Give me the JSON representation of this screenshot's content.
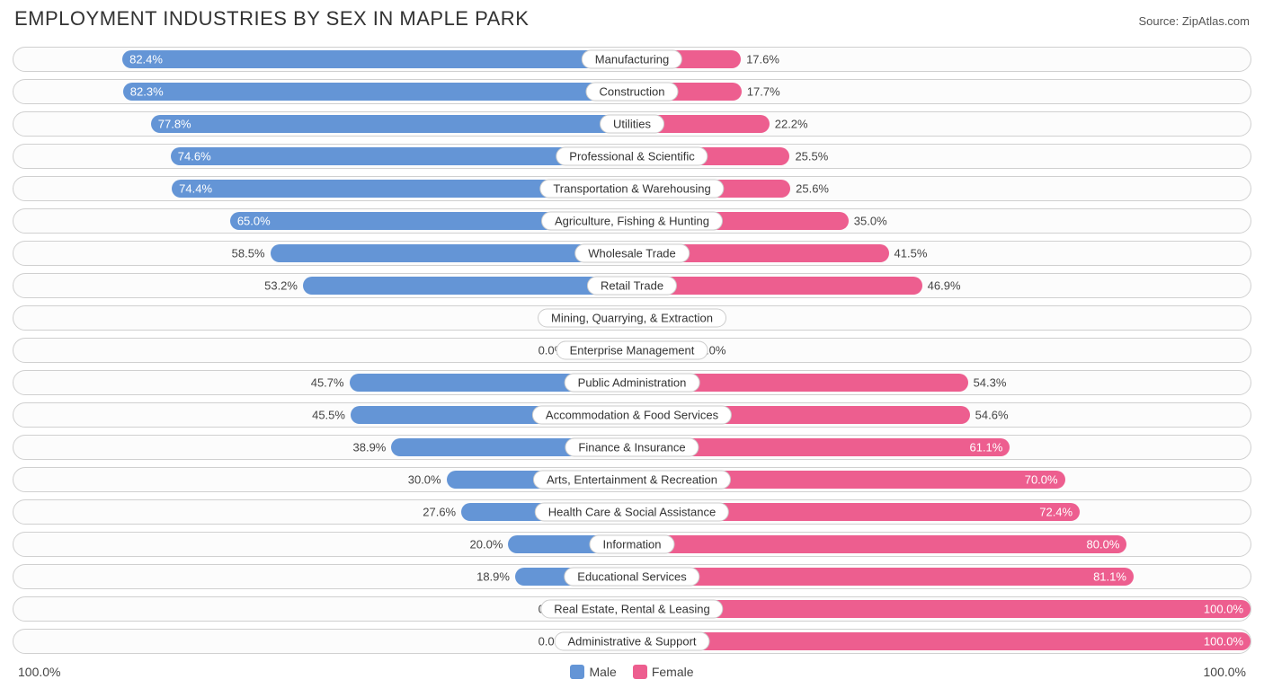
{
  "header": {
    "title": "EMPLOYMENT INDUSTRIES BY SEX IN MAPLE PARK",
    "source_prefix": "Source: ",
    "source_name": "ZipAtlas.com"
  },
  "chart": {
    "type": "diverging-bar",
    "axis_center": 0,
    "half_width_pct": 50,
    "min_visual_pct": 10,
    "inside_label_threshold_pct": 60,
    "colors": {
      "male": "#6495d6",
      "female": "#ed5e8f",
      "male_light": "#8ab2e4",
      "female_light": "#f28bb0",
      "track_border": "#d0d0d0",
      "track_bg": "#fcfcfc",
      "text": "#333333",
      "value_inside": "#ffffff",
      "value_outside": "#444444"
    },
    "rows": [
      {
        "label": "Manufacturing",
        "male": 82.4,
        "female": 17.6,
        "no_data": false
      },
      {
        "label": "Construction",
        "male": 82.3,
        "female": 17.7,
        "no_data": false
      },
      {
        "label": "Utilities",
        "male": 77.8,
        "female": 22.2,
        "no_data": false
      },
      {
        "label": "Professional & Scientific",
        "male": 74.6,
        "female": 25.5,
        "no_data": false
      },
      {
        "label": "Transportation & Warehousing",
        "male": 74.4,
        "female": 25.6,
        "no_data": false
      },
      {
        "label": "Agriculture, Fishing & Hunting",
        "male": 65.0,
        "female": 35.0,
        "no_data": false
      },
      {
        "label": "Wholesale Trade",
        "male": 58.5,
        "female": 41.5,
        "no_data": false
      },
      {
        "label": "Retail Trade",
        "male": 53.2,
        "female": 46.9,
        "no_data": false
      },
      {
        "label": "Mining, Quarrying, & Extraction",
        "male": 0.0,
        "female": 0.0,
        "no_data": true
      },
      {
        "label": "Enterprise Management",
        "male": 0.0,
        "female": 0.0,
        "no_data": true
      },
      {
        "label": "Public Administration",
        "male": 45.7,
        "female": 54.3,
        "no_data": false
      },
      {
        "label": "Accommodation & Food Services",
        "male": 45.5,
        "female": 54.6,
        "no_data": false
      },
      {
        "label": "Finance & Insurance",
        "male": 38.9,
        "female": 61.1,
        "no_data": false
      },
      {
        "label": "Arts, Entertainment & Recreation",
        "male": 30.0,
        "female": 70.0,
        "no_data": false
      },
      {
        "label": "Health Care & Social Assistance",
        "male": 27.6,
        "female": 72.4,
        "no_data": false
      },
      {
        "label": "Information",
        "male": 20.0,
        "female": 80.0,
        "no_data": false
      },
      {
        "label": "Educational Services",
        "male": 18.9,
        "female": 81.1,
        "no_data": false
      },
      {
        "label": "Real Estate, Rental & Leasing",
        "male": 0.0,
        "female": 100.0,
        "no_data": true,
        "female_has_data": true
      },
      {
        "label": "Administrative & Support",
        "male": 0.0,
        "female": 100.0,
        "no_data": true,
        "female_has_data": true
      }
    ]
  },
  "footer": {
    "axis_left": "100.0%",
    "axis_right": "100.0%",
    "legend": [
      {
        "label": "Male",
        "color": "#6495d6"
      },
      {
        "label": "Female",
        "color": "#ed5e8f"
      }
    ]
  }
}
